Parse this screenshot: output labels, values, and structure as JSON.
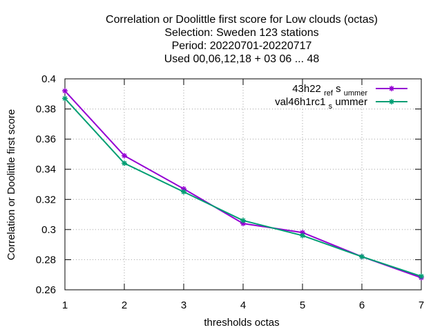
{
  "chart_data": {
    "type": "line",
    "title_lines": [
      "Correlation or Doolittle first score  for Low clouds (octas)",
      "Selection: Sweden    123 stations",
      "Period: 20220701-20220717",
      "Used  00,06,12,18  + 03 06 ... 48"
    ],
    "xlabel": "thresholds octas",
    "ylabel": "Correlation or Doolittle first score",
    "x": [
      1,
      2,
      3,
      4,
      5,
      6,
      7
    ],
    "x_ticks": [
      "1",
      "2",
      "3",
      "4",
      "5",
      "6",
      "7"
    ],
    "xlim": [
      1,
      7
    ],
    "y_ticks": [
      "0.26",
      "0.28",
      "0.3",
      "0.32",
      "0.34",
      "0.36",
      "0.38",
      "0.4"
    ],
    "ylim": [
      0.26,
      0.4
    ],
    "grid": true,
    "legend_position": "top-right",
    "series": [
      {
        "name_parts": [
          "43h22",
          "ref",
          "s",
          "ummer"
        ],
        "color": "#9400d3",
        "values": [
          0.392,
          0.349,
          0.327,
          0.304,
          0.298,
          0.282,
          0.268
        ]
      },
      {
        "name_parts": [
          "val46h1rc1",
          "s",
          "ummer"
        ],
        "color": "#009e73",
        "values": [
          0.387,
          0.344,
          0.325,
          0.306,
          0.296,
          0.282,
          0.269
        ]
      }
    ]
  }
}
